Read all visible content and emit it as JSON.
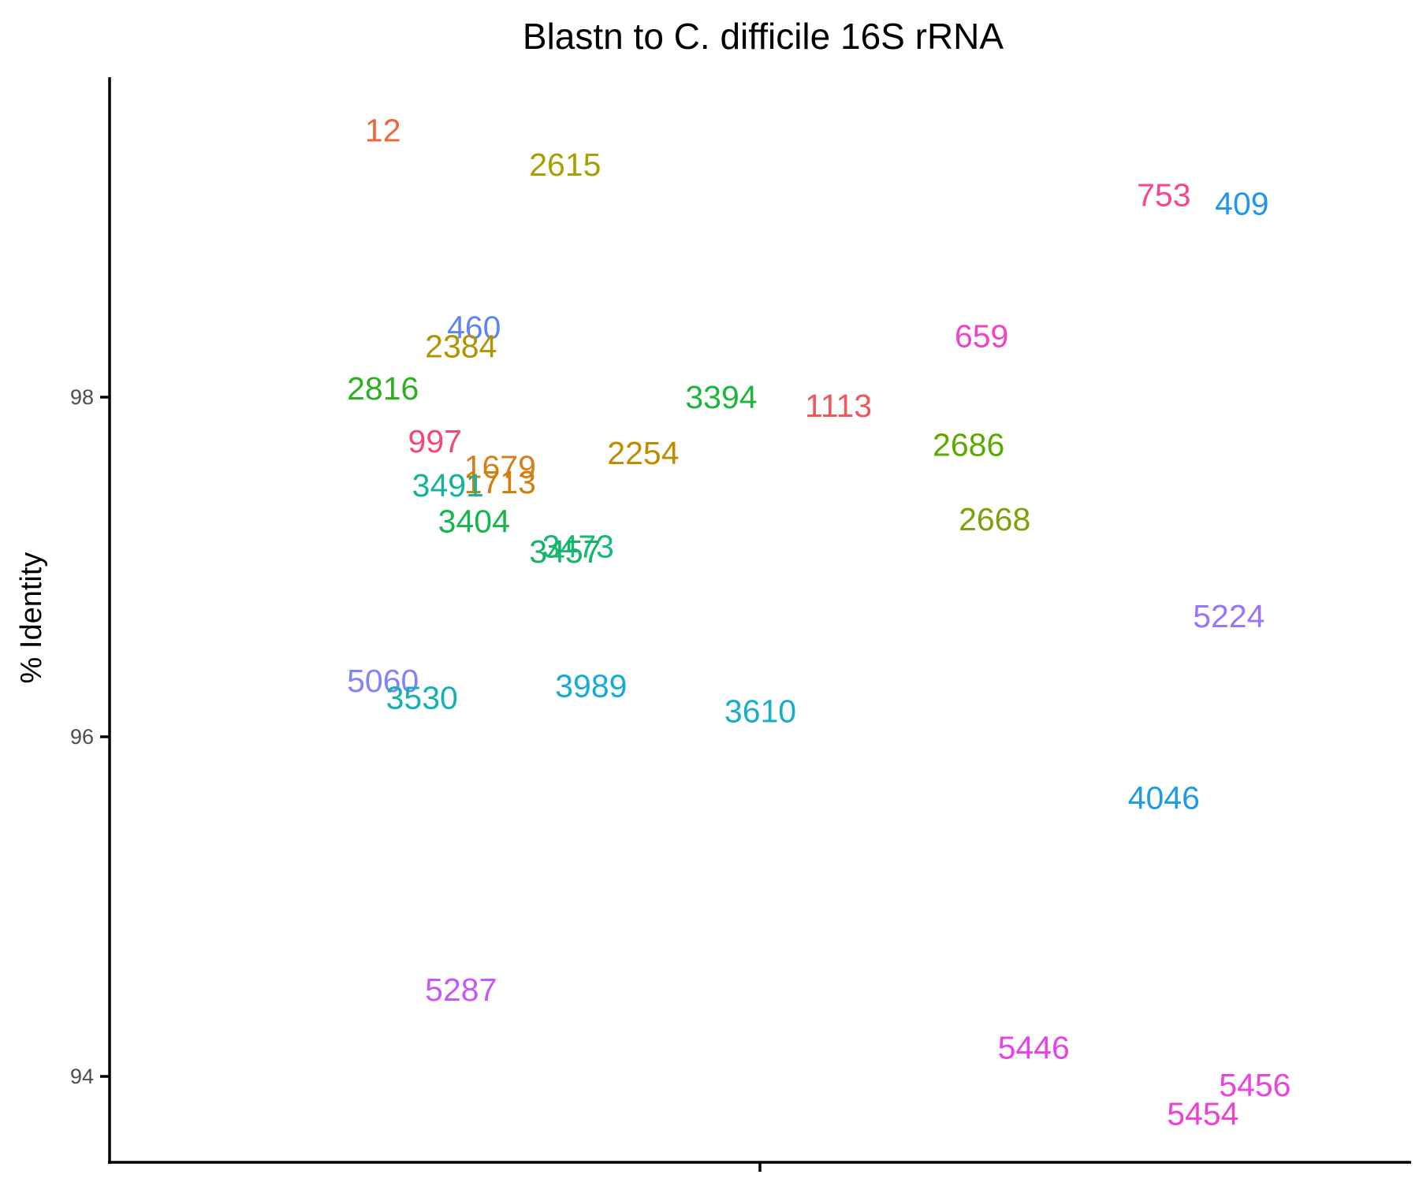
{
  "chart_data": {
    "type": "scatter",
    "title": "Blastn to C. difficile 16S rRNA",
    "xlabel": "",
    "ylabel": "% Identity",
    "ylim": [
      93.5,
      99.9
    ],
    "y_ticks": [
      94,
      96,
      98
    ],
    "x_ticks": [
      ""
    ],
    "grid": false,
    "legend": "none",
    "points": [
      {
        "label": "12",
        "x": 0.21,
        "y": 99.57,
        "color": "#E8683B"
      },
      {
        "label": "2615",
        "x": 0.35,
        "y": 99.37,
        "color": "#A8A000"
      },
      {
        "label": "753",
        "x": 0.81,
        "y": 99.19,
        "color": "#F8478F"
      },
      {
        "label": "409",
        "x": 0.87,
        "y": 99.14,
        "color": "#1F97F0"
      },
      {
        "label": "460",
        "x": 0.28,
        "y": 98.41,
        "color": "#5F85F5"
      },
      {
        "label": "2384",
        "x": 0.27,
        "y": 98.3,
        "color": "#B19400"
      },
      {
        "label": "659",
        "x": 0.67,
        "y": 98.36,
        "color": "#F142C4"
      },
      {
        "label": "2816",
        "x": 0.21,
        "y": 98.05,
        "color": "#2DAF22"
      },
      {
        "label": "3394",
        "x": 0.47,
        "y": 98.0,
        "color": "#1CB739"
      },
      {
        "label": "1113",
        "x": 0.56,
        "y": 97.95,
        "color": "#F0575A"
      },
      {
        "label": "997",
        "x": 0.25,
        "y": 97.74,
        "color": "#F24874"
      },
      {
        "label": "2686",
        "x": 0.66,
        "y": 97.72,
        "color": "#5CA900"
      },
      {
        "label": "2254",
        "x": 0.41,
        "y": 97.67,
        "color": "#C18B00"
      },
      {
        "label": "1679",
        "x": 0.3,
        "y": 97.59,
        "color": "#D6801A"
      },
      {
        "label": "1713",
        "x": 0.3,
        "y": 97.5,
        "color": "#D17E0B"
      },
      {
        "label": "3491",
        "x": 0.26,
        "y": 97.48,
        "color": "#13B39C"
      },
      {
        "label": "3404",
        "x": 0.28,
        "y": 97.27,
        "color": "#15B64C"
      },
      {
        "label": "2668",
        "x": 0.68,
        "y": 97.28,
        "color": "#7BA20A"
      },
      {
        "label": "3473",
        "x": 0.36,
        "y": 97.12,
        "color": "#19B77A"
      },
      {
        "label": "3457",
        "x": 0.35,
        "y": 97.09,
        "color": "#15B467"
      },
      {
        "label": "5224",
        "x": 0.86,
        "y": 96.71,
        "color": "#9875FA"
      },
      {
        "label": "5060",
        "x": 0.21,
        "y": 96.33,
        "color": "#8383F9"
      },
      {
        "label": "3530",
        "x": 0.24,
        "y": 96.23,
        "color": "#14B1B3"
      },
      {
        "label": "3989",
        "x": 0.37,
        "y": 96.3,
        "color": "#16AAD8"
      },
      {
        "label": "3610",
        "x": 0.5,
        "y": 96.15,
        "color": "#16AFC6"
      },
      {
        "label": "4046",
        "x": 0.81,
        "y": 95.64,
        "color": "#1F9BE6"
      },
      {
        "label": "5287",
        "x": 0.27,
        "y": 94.51,
        "color": "#C659F5"
      },
      {
        "label": "5446",
        "x": 0.71,
        "y": 94.17,
        "color": "#E841E8"
      },
      {
        "label": "5456",
        "x": 0.88,
        "y": 93.95,
        "color": "#ED42DC"
      },
      {
        "label": "5454",
        "x": 0.84,
        "y": 93.78,
        "color": "#F040D0"
      }
    ]
  }
}
